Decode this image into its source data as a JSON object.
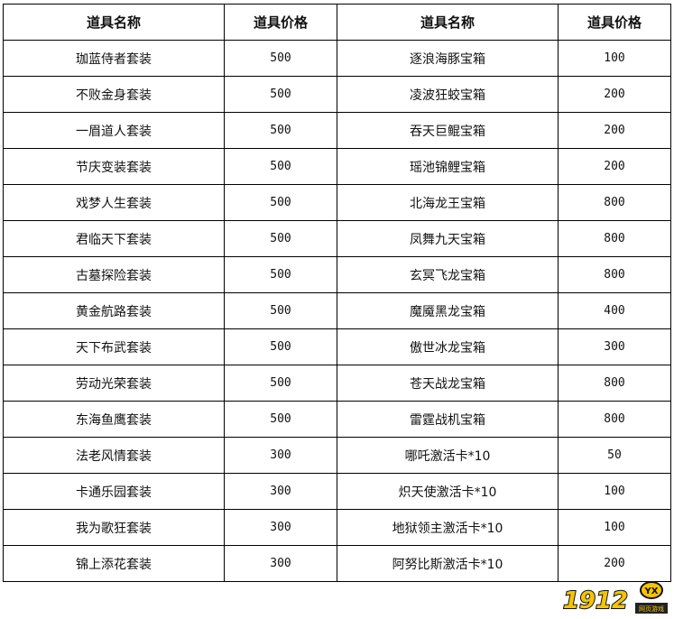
{
  "headers": [
    "道具名称",
    "道具价格",
    "道具名称",
    "道具价格"
  ],
  "rows": [
    [
      "珈蓝侍者套装",
      "500",
      "逐浪海豚宝箱",
      "100"
    ],
    [
      "不败金身套装",
      "500",
      "凌波狂蛟宝箱",
      "200"
    ],
    [
      "一眉道人套装",
      "500",
      "吞天巨鲲宝箱",
      "200"
    ],
    [
      "节庆变装套装",
      "500",
      "瑶池锦鲤宝箱",
      "200"
    ],
    [
      "戏梦人生套装",
      "500",
      "北海龙王宝箱",
      "800"
    ],
    [
      "君临天下套装",
      "500",
      "凤舞九天宝箱",
      "800"
    ],
    [
      "古墓探险套装",
      "500",
      "玄冥飞龙宝箱",
      "800"
    ],
    [
      "黄金航路套装",
      "500",
      "魔魇黑龙宝箱",
      "400"
    ],
    [
      "天下布武套装",
      "500",
      "傲世冰龙宝箱",
      "300"
    ],
    [
      "劳动光荣套装",
      "500",
      "苍天战龙宝箱",
      "800"
    ],
    [
      "东海鱼鹰套装",
      "500",
      "雷霆战机宝箱",
      "800"
    ],
    [
      "法老风情套装",
      "300",
      "哪吒激活卡*10",
      "50"
    ],
    [
      "卡通乐园套装",
      "300",
      "炽天使激活卡*10",
      "100"
    ],
    [
      "我为歌狂套装",
      "300",
      "地狱领主激活卡*10",
      "100"
    ],
    [
      "锦上添花套装",
      "300",
      "阿努比斯激活卡*10",
      "200"
    ]
  ],
  "logo": {
    "main": "1912",
    "badge": "YX",
    "sub": "网页游戏",
    "colors": {
      "yellow": "#f5c400",
      "outline": "#111111"
    }
  }
}
